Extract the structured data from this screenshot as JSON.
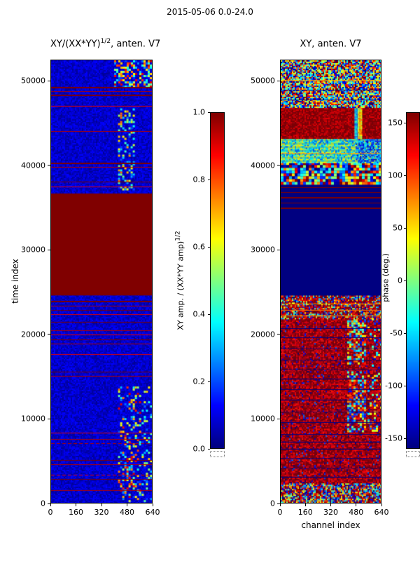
{
  "figure_title": "2015-05-06 0.0-24.0",
  "chart_data": [
    {
      "type": "heatmap",
      "panel": "left",
      "title_prefix": "XY/(XX*YY)",
      "title_sup": "1/2",
      "title_suffix": ", anten. V7",
      "xlabel": "",
      "ylabel": "time index",
      "xlim": [
        0,
        640
      ],
      "ylim": [
        0,
        52500
      ],
      "xticks": [
        0,
        160,
        320,
        480,
        640
      ],
      "yticks": [
        0,
        10000,
        20000,
        30000,
        40000,
        50000
      ],
      "colormap": "jet",
      "vmin": 0,
      "vmax": 1,
      "bg": 0.07,
      "seed": 7,
      "colorbar": {
        "label_prefix": "XY amp. / (XX*YY amp)",
        "label_sup": "1/2",
        "ticks": [
          "1.0",
          "0.8",
          "0.6",
          "0.4",
          "0.2",
          "0.0"
        ]
      },
      "regions": [
        {
          "t": [
            0,
            52500
          ],
          "c": [
            0,
            640
          ],
          "v": [
            0.02,
            0.13
          ],
          "cell": 2,
          "density": 1
        },
        {
          "t": [
            300,
            13800
          ],
          "c": [
            425,
            565
          ],
          "v": [
            0.08,
            0.92
          ],
          "cell": 3,
          "density": 0.3
        },
        {
          "t": [
            300,
            13800
          ],
          "c": [
            575,
            640
          ],
          "v": [
            0.06,
            0.7
          ],
          "cell": 3,
          "density": 0.2
        },
        {
          "t": [
            37200,
            46800
          ],
          "c": [
            425,
            530
          ],
          "v": [
            0.12,
            0.78
          ],
          "cell": 3,
          "density": 0.35
        },
        {
          "t": [
            49400,
            52500
          ],
          "c": [
            400,
            640
          ],
          "v": [
            0.08,
            1.0
          ],
          "cell": 3,
          "density": 0.55
        },
        {
          "t": [
            24600,
            36700
          ],
          "c": [
            0,
            640
          ],
          "v": [
            1.0,
            1.0
          ],
          "solid": true
        }
      ],
      "hlines": [
        {
          "t": 49300,
          "v": 1.0,
          "lw": 2
        },
        {
          "t": 48850,
          "v": 0.95
        },
        {
          "t": 48400,
          "v": 1.0,
          "lw": 2
        },
        {
          "t": 47100,
          "v": 0.9
        },
        {
          "t": 44100,
          "v": 0.95
        },
        {
          "t": 40350,
          "v": 1.0,
          "lw": 2
        },
        {
          "t": 39850,
          "v": 0.95
        },
        {
          "t": 38100,
          "v": 1.0
        },
        {
          "t": 37550,
          "v": 0.9
        },
        {
          "t": 23950,
          "v": 1.0,
          "lw": 2
        },
        {
          "t": 23400,
          "v": 0.95
        },
        {
          "t": 22900,
          "v": 1.0
        },
        {
          "t": 22400,
          "v": 0.9
        },
        {
          "t": 21500,
          "v": 1.0
        },
        {
          "t": 20500,
          "v": 0.95
        },
        {
          "t": 19950,
          "v": 0.9
        },
        {
          "t": 19400,
          "v": 1.0
        },
        {
          "t": 18900,
          "v": 0.95
        },
        {
          "t": 17600,
          "v": 0.9
        },
        {
          "t": 15600,
          "v": 1.0
        },
        {
          "t": 15100,
          "v": 0.95
        },
        {
          "t": 8300,
          "v": 0.9
        },
        {
          "t": 7600,
          "v": 0.95
        },
        {
          "t": 7100,
          "v": 0.95,
          "dash": true
        },
        {
          "t": 5050,
          "v": 1.0
        },
        {
          "t": 4550,
          "v": 0.95
        },
        {
          "t": 3300,
          "v": 0.9,
          "dash": true
        },
        {
          "t": 2800,
          "v": 1.0
        },
        {
          "t": 1500,
          "v": 0.95
        }
      ]
    },
    {
      "type": "heatmap",
      "panel": "right",
      "title_prefix": "XY, anten. V7",
      "title_sup": "",
      "title_suffix": "",
      "xlabel": "channel index",
      "ylabel": "",
      "xlim": [
        0,
        640
      ],
      "ylim": [
        0,
        52500
      ],
      "xticks": [
        0,
        160,
        320,
        480,
        640
      ],
      "yticks": [
        0,
        10000,
        20000,
        30000,
        40000,
        50000
      ],
      "colormap": "jet",
      "vmin": -160,
      "vmax": 160,
      "bg": -172,
      "seed": 13,
      "colorbar": {
        "label_prefix": "phase (deg.)",
        "label_sup": "",
        "ticks": [
          150,
          100,
          50,
          0,
          -50,
          -100,
          -150
        ]
      },
      "regions": [
        {
          "t": [
            0,
            24600
          ],
          "c": [
            0,
            640
          ],
          "v": [
            110,
            180
          ],
          "cell": 2,
          "density": 1
        },
        {
          "t": [
            0,
            24600
          ],
          "c": [
            0,
            640
          ],
          "v": [
            -180,
            -80
          ],
          "cell": 2,
          "density": 0.07
        },
        {
          "t": [
            8600,
            15600
          ],
          "c": [
            425,
            535
          ],
          "v": [
            -130,
            130
          ],
          "cell": 3,
          "density": 0.6
        },
        {
          "t": [
            16600,
            21900
          ],
          "c": [
            425,
            535
          ],
          "v": [
            -130,
            130
          ],
          "cell": 3,
          "density": 0.5
        },
        {
          "t": [
            8600,
            21900
          ],
          "c": [
            555,
            640
          ],
          "v": [
            -150,
            150
          ],
          "cell": 3,
          "density": 0.25
        },
        {
          "t": [
            0,
            2300
          ],
          "c": [
            0,
            640
          ],
          "v": [
            -180,
            180
          ],
          "cell": 2,
          "density": 0.8
        },
        {
          "t": [
            21900,
            24600
          ],
          "c": [
            0,
            640
          ],
          "v": [
            -180,
            180
          ],
          "cell": 2,
          "density": 0.45
        },
        {
          "t": [
            24600,
            37900
          ],
          "c": [
            0,
            640
          ],
          "v": [
            -172,
            -172
          ],
          "solid": true
        },
        {
          "t": [
            37900,
            40400
          ],
          "c": [
            0,
            640
          ],
          "v": [
            -180,
            180
          ],
          "cell": 4,
          "density": 1
        },
        {
          "t": [
            40400,
            43300
          ],
          "c": [
            0,
            640
          ],
          "v": [
            -90,
            50
          ],
          "cell": 2,
          "density": 1
        },
        {
          "t": [
            40400,
            43300
          ],
          "c": [
            480,
            640
          ],
          "v": [
            -160,
            -40
          ],
          "cell": 2,
          "density": 0.7
        },
        {
          "t": [
            43300,
            47000
          ],
          "c": [
            0,
            640
          ],
          "v": [
            125,
            180
          ],
          "cell": 2,
          "density": 1
        },
        {
          "t": [
            43300,
            47000
          ],
          "c": [
            472,
            494
          ],
          "v": [
            -90,
            -20
          ],
          "cell": 2,
          "density": 1
        },
        {
          "t": [
            43300,
            47000
          ],
          "c": [
            494,
            516
          ],
          "v": [
            10,
            90
          ],
          "cell": 2,
          "density": 1
        },
        {
          "t": [
            47000,
            52500
          ],
          "c": [
            0,
            640
          ],
          "v": [
            -180,
            180
          ],
          "cell": 2,
          "density": 1
        }
      ],
      "hlines": [
        {
          "t": 3100,
          "v": -170
        },
        {
          "t": 4200,
          "v": -170
        },
        {
          "t": 5300,
          "v": -170
        },
        {
          "t": 6400,
          "v": -170
        },
        {
          "t": 7250,
          "v": -170
        },
        {
          "t": 8150,
          "v": -170
        },
        {
          "t": 9600,
          "v": -170
        },
        {
          "t": 10800,
          "v": -170
        },
        {
          "t": 12200,
          "v": -170
        },
        {
          "t": 13500,
          "v": -170
        },
        {
          "t": 14700,
          "v": -170
        },
        {
          "t": 15800,
          "v": -170
        },
        {
          "t": 17000,
          "v": -170
        },
        {
          "t": 18300,
          "v": -170
        },
        {
          "t": 19600,
          "v": -170
        },
        {
          "t": 20700,
          "v": -170
        },
        {
          "t": 22200,
          "v": 70
        },
        {
          "t": 22900,
          "v": 85
        },
        {
          "t": 23600,
          "v": 60
        },
        {
          "t": 35050,
          "v": 160,
          "lw": 2
        },
        {
          "t": 35650,
          "v": 160
        },
        {
          "t": 36250,
          "v": 160,
          "lw": 2
        },
        {
          "t": 36850,
          "v": 160
        },
        {
          "t": 37450,
          "v": 160
        },
        {
          "t": 41500,
          "v": 80
        },
        {
          "t": 47800,
          "v": -170
        },
        {
          "t": 49000,
          "v": -170
        },
        {
          "t": 50200,
          "v": 60
        }
      ]
    }
  ]
}
